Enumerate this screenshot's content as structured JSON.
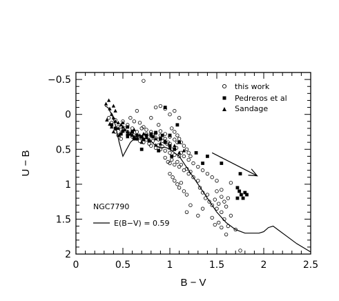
{
  "chart_data": {
    "type": "scatter",
    "title": "",
    "xlabel": "B − V",
    "ylabel": "U − B",
    "xlim": [
      0,
      2.5
    ],
    "ylim": [
      -0.6,
      2.0
    ],
    "y_inverted": true,
    "x_ticks": [
      0,
      0.5,
      1,
      1.5,
      2,
      2.5
    ],
    "x_tick_labels": [
      "0",
      "0.5",
      "1",
      "1.5",
      "2",
      "2.5"
    ],
    "y_ticks": [
      -0.5,
      0,
      0.5,
      1,
      1.5,
      2
    ],
    "y_tick_labels": [
      "−0.5",
      "0",
      "0.5",
      "1",
      "1.5",
      "2"
    ],
    "grid": false,
    "legend_position": "top-right",
    "series": [
      {
        "name": "this work",
        "marker": "open-circle",
        "points": [
          [
            0.35,
            0.05
          ],
          [
            0.38,
            0.12
          ],
          [
            0.42,
            0.08
          ],
          [
            0.45,
            0.18
          ],
          [
            0.48,
            0.22
          ],
          [
            0.52,
            0.2
          ],
          [
            0.55,
            0.25
          ],
          [
            0.58,
            0.28
          ],
          [
            0.6,
            0.32
          ],
          [
            0.62,
            0.3
          ],
          [
            0.65,
            0.35
          ],
          [
            0.68,
            0.38
          ],
          [
            0.7,
            0.33
          ],
          [
            0.72,
            0.4
          ],
          [
            0.75,
            0.36
          ],
          [
            0.78,
            0.42
          ],
          [
            0.8,
            0.45
          ],
          [
            0.82,
            0.38
          ],
          [
            0.85,
            0.48
          ],
          [
            0.88,
            0.44
          ],
          [
            0.9,
            0.5
          ],
          [
            0.92,
            0.46
          ],
          [
            0.95,
            0.52
          ],
          [
            0.97,
            0.42
          ],
          [
            1.0,
            0.55
          ],
          [
            1.02,
            0.5
          ],
          [
            1.05,
            0.58
          ],
          [
            1.07,
            0.48
          ],
          [
            1.1,
            0.6
          ],
          [
            1.12,
            0.55
          ],
          [
            0.75,
            0.28
          ],
          [
            0.78,
            0.32
          ],
          [
            0.82,
            0.3
          ],
          [
            0.85,
            0.34
          ],
          [
            0.88,
            0.36
          ],
          [
            0.9,
            0.3
          ],
          [
            0.92,
            0.38
          ],
          [
            0.95,
            0.35
          ],
          [
            0.98,
            0.4
          ],
          [
            1.0,
            0.42
          ],
          [
            0.7,
            0.2
          ],
          [
            0.72,
            0.18
          ],
          [
            0.75,
            0.22
          ],
          [
            0.8,
            0.25
          ],
          [
            0.85,
            0.27
          ],
          [
            0.9,
            0.24
          ],
          [
            0.95,
            0.28
          ],
          [
            1.0,
            0.32
          ],
          [
            1.05,
            0.36
          ],
          [
            1.08,
            0.4
          ],
          [
            0.65,
            -0.05
          ],
          [
            0.72,
            -0.48
          ],
          [
            0.85,
            -0.1
          ],
          [
            0.9,
            -0.12
          ],
          [
            0.95,
            -0.08
          ],
          [
            1.0,
            0.0
          ],
          [
            1.05,
            -0.05
          ],
          [
            1.1,
            0.05
          ],
          [
            0.8,
            0.05
          ],
          [
            0.88,
            0.15
          ],
          [
            1.0,
            0.7
          ],
          [
            1.02,
            0.65
          ],
          [
            1.05,
            0.72
          ],
          [
            1.08,
            0.68
          ],
          [
            1.1,
            0.75
          ],
          [
            1.12,
            0.72
          ],
          [
            1.15,
            0.8
          ],
          [
            1.18,
            0.78
          ],
          [
            1.2,
            0.85
          ],
          [
            1.22,
            0.82
          ],
          [
            0.95,
            0.62
          ],
          [
            0.98,
            0.68
          ],
          [
            1.0,
            0.85
          ],
          [
            1.03,
            0.9
          ],
          [
            1.05,
            0.95
          ],
          [
            1.08,
            1.0
          ],
          [
            1.1,
            1.05
          ],
          [
            1.12,
            0.98
          ],
          [
            1.15,
            1.1
          ],
          [
            1.18,
            1.15
          ],
          [
            1.15,
            0.6
          ],
          [
            1.2,
            0.65
          ],
          [
            1.25,
            0.7
          ],
          [
            1.3,
            0.75
          ],
          [
            1.35,
            0.8
          ],
          [
            1.4,
            0.85
          ],
          [
            1.45,
            0.9
          ],
          [
            1.5,
            0.95
          ],
          [
            1.25,
            0.9
          ],
          [
            1.3,
            0.95
          ],
          [
            1.32,
            1.05
          ],
          [
            1.35,
            1.12
          ],
          [
            1.38,
            1.2
          ],
          [
            1.4,
            1.15
          ],
          [
            1.42,
            1.25
          ],
          [
            1.45,
            1.3
          ],
          [
            1.48,
            1.22
          ],
          [
            1.5,
            1.35
          ],
          [
            1.52,
            1.28
          ],
          [
            1.55,
            1.4
          ],
          [
            1.5,
            1.1
          ],
          [
            1.55,
            1.18
          ],
          [
            1.58,
            1.25
          ],
          [
            1.6,
            1.32
          ],
          [
            1.62,
            1.2
          ],
          [
            1.65,
            1.45
          ],
          [
            1.58,
            1.5
          ],
          [
            1.52,
            1.55
          ],
          [
            1.62,
            1.6
          ],
          [
            1.7,
            1.65
          ],
          [
            1.3,
            1.45
          ],
          [
            1.35,
            1.35
          ],
          [
            1.22,
            1.3
          ],
          [
            1.18,
            1.4
          ],
          [
            1.45,
            1.48
          ],
          [
            1.48,
            1.58
          ],
          [
            1.55,
            1.62
          ],
          [
            1.6,
            1.72
          ],
          [
            1.55,
            1.08
          ],
          [
            1.65,
            0.98
          ],
          [
            1.75,
            1.95
          ],
          [
            1.02,
            0.2
          ],
          [
            1.05,
            0.25
          ],
          [
            1.08,
            0.3
          ],
          [
            1.1,
            0.35
          ],
          [
            1.12,
            0.4
          ],
          [
            1.15,
            0.45
          ],
          [
            1.18,
            0.5
          ],
          [
            1.2,
            0.55
          ],
          [
            1.22,
            0.6
          ],
          [
            0.45,
            0.3
          ],
          [
            0.48,
            0.35
          ],
          [
            0.42,
            0.25
          ],
          [
            0.5,
            0.1
          ],
          [
            0.55,
            0.15
          ],
          [
            0.58,
            0.05
          ],
          [
            0.62,
            0.1
          ],
          [
            0.68,
            0.12
          ],
          [
            0.6,
            0.2
          ],
          [
            0.65,
            0.25
          ]
        ]
      },
      {
        "name": "Pedreros et al",
        "marker": "filled-square",
        "points": [
          [
            0.38,
            0.15
          ],
          [
            0.42,
            0.2
          ],
          [
            0.48,
            0.28
          ],
          [
            0.55,
            0.3
          ],
          [
            0.62,
            0.35
          ],
          [
            0.7,
            0.32
          ],
          [
            0.75,
            0.3
          ],
          [
            0.8,
            0.28
          ],
          [
            0.85,
            0.26
          ],
          [
            0.9,
            0.35
          ],
          [
            0.95,
            0.4
          ],
          [
            1.0,
            0.45
          ],
          [
            1.05,
            0.5
          ],
          [
            1.1,
            0.4
          ],
          [
            0.7,
            0.5
          ],
          [
            0.78,
            0.38
          ],
          [
            0.88,
            0.52
          ],
          [
            0.95,
            -0.1
          ],
          [
            1.02,
            0.6
          ],
          [
            1.08,
            0.15
          ],
          [
            1.28,
            0.55
          ],
          [
            1.35,
            0.7
          ],
          [
            1.4,
            0.6
          ],
          [
            1.55,
            0.7
          ],
          [
            1.72,
            1.05
          ],
          [
            1.74,
            1.1
          ],
          [
            1.76,
            1.15
          ],
          [
            1.78,
            1.2
          ],
          [
            1.8,
            1.12
          ],
          [
            1.72,
            1.2
          ],
          [
            1.75,
            0.85
          ],
          [
            1.82,
            1.15
          ],
          [
            0.6,
            0.25
          ],
          [
            0.65,
            0.3
          ],
          [
            0.72,
            0.36
          ],
          [
            0.82,
            0.32
          ],
          [
            0.92,
            0.3
          ],
          [
            1.0,
            0.3
          ],
          [
            0.55,
            0.18
          ],
          [
            0.5,
            0.24
          ]
        ]
      },
      {
        "name": "Sandage",
        "marker": "filled-triangle",
        "points": [
          [
            0.32,
            -0.15
          ],
          [
            0.35,
            -0.2
          ],
          [
            0.36,
            -0.08
          ],
          [
            0.38,
            0.0
          ],
          [
            0.4,
            0.05
          ],
          [
            0.42,
            0.1
          ],
          [
            0.45,
            0.12
          ],
          [
            0.48,
            0.15
          ],
          [
            0.5,
            0.18
          ],
          [
            0.52,
            0.22
          ],
          [
            0.55,
            0.25
          ],
          [
            0.58,
            0.28
          ],
          [
            0.6,
            0.3
          ],
          [
            0.62,
            0.32
          ],
          [
            0.65,
            0.35
          ],
          [
            0.68,
            0.3
          ],
          [
            0.72,
            0.28
          ],
          [
            0.75,
            0.33
          ],
          [
            0.78,
            0.37
          ],
          [
            0.8,
            0.3
          ],
          [
            0.85,
            0.35
          ],
          [
            0.9,
            0.42
          ],
          [
            0.95,
            0.38
          ],
          [
            1.0,
            0.48
          ],
          [
            1.05,
            0.45
          ],
          [
            1.1,
            0.55
          ],
          [
            1.15,
            0.52
          ],
          [
            0.4,
            0.25
          ],
          [
            0.45,
            0.2
          ],
          [
            0.5,
            0.12
          ],
          [
            0.42,
            -0.05
          ],
          [
            0.46,
            0.3
          ],
          [
            0.38,
            0.18
          ],
          [
            0.4,
            -0.12
          ],
          [
            0.55,
            0.32
          ],
          [
            0.62,
            0.22
          ],
          [
            0.7,
            0.4
          ],
          [
            0.85,
            0.44
          ],
          [
            0.33,
            0.08
          ],
          [
            0.36,
            0.14
          ]
        ]
      }
    ],
    "reference_line": {
      "name": "E(B−V) = 0.59",
      "points": [
        [
          0.31,
          -0.12
        ],
        [
          0.34,
          -0.1
        ],
        [
          0.38,
          0.0
        ],
        [
          0.42,
          0.15
        ],
        [
          0.46,
          0.4
        ],
        [
          0.5,
          0.6
        ],
        [
          0.54,
          0.5
        ],
        [
          0.58,
          0.4
        ],
        [
          0.62,
          0.35
        ],
        [
          0.7,
          0.33
        ],
        [
          0.78,
          0.36
        ],
        [
          0.85,
          0.45
        ],
        [
          0.9,
          0.48
        ],
        [
          0.95,
          0.47
        ],
        [
          1.0,
          0.5
        ],
        [
          1.05,
          0.55
        ],
        [
          1.1,
          0.6
        ],
        [
          1.2,
          0.8
        ],
        [
          1.3,
          1.0
        ],
        [
          1.4,
          1.2
        ],
        [
          1.5,
          1.4
        ],
        [
          1.6,
          1.55
        ],
        [
          1.7,
          1.65
        ],
        [
          1.8,
          1.7
        ],
        [
          1.88,
          1.7
        ],
        [
          1.95,
          1.7
        ],
        [
          2.0,
          1.68
        ],
        [
          2.05,
          1.62
        ],
        [
          2.1,
          1.6
        ],
        [
          2.15,
          1.65
        ],
        [
          2.25,
          1.75
        ],
        [
          2.35,
          1.85
        ],
        [
          2.5,
          1.97
        ]
      ]
    },
    "arrow": {
      "from": [
        1.45,
        0.55
      ],
      "to": [
        1.93,
        0.88
      ]
    },
    "annotation": "NGC7790"
  },
  "legend": {
    "items": [
      "this work",
      "Pedreros et al",
      "Sandage"
    ],
    "line_label": "E(B−V) = 0.59"
  }
}
